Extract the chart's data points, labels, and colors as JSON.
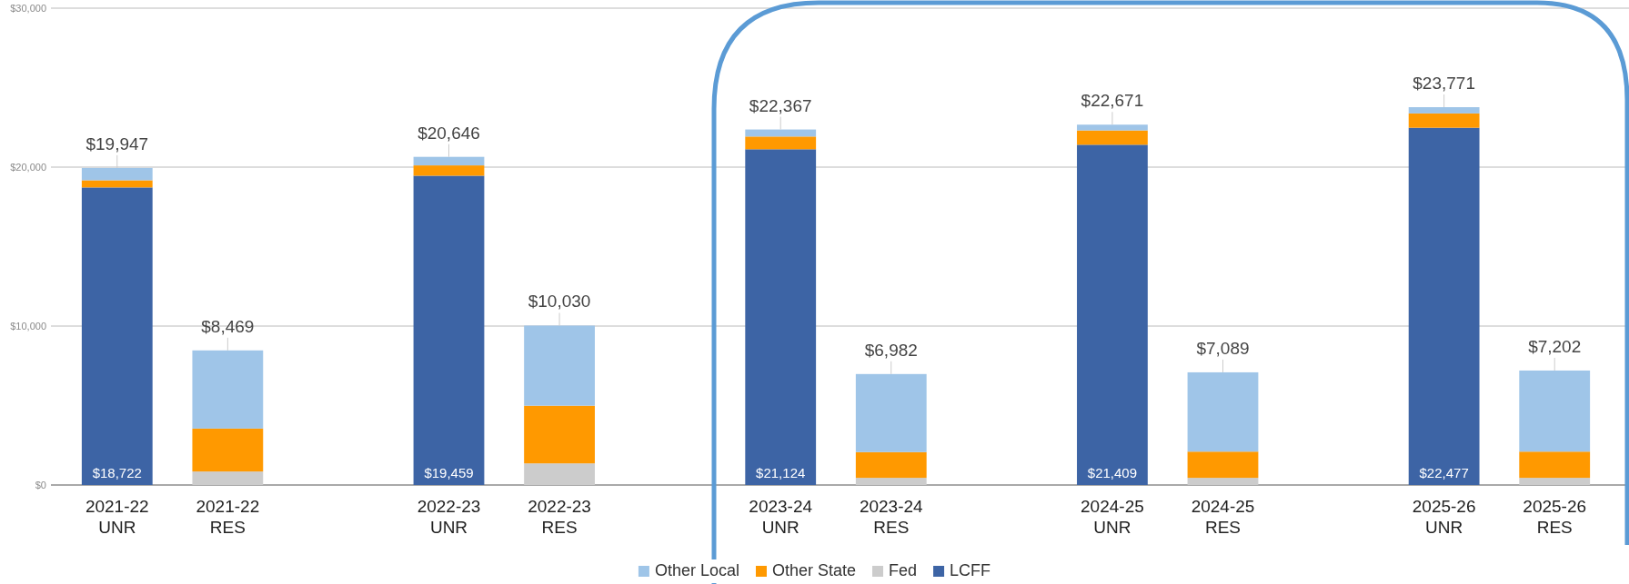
{
  "chart_data": {
    "type": "bar",
    "stacked": true,
    "categories": [
      "2021-22 UNR",
      "2021-22 RES",
      null,
      "2022-23 UNR",
      "2022-23 RES",
      null,
      "2023-24 UNR",
      "2023-24 RES",
      null,
      "2024-25 UNR",
      "2024-25 RES",
      null,
      "2025-26 UNR",
      "2025-26 RES"
    ],
    "series": [
      {
        "name": "LCFF",
        "color": "#3d64a5",
        "values": [
          18722,
          null,
          null,
          19459,
          null,
          null,
          21124,
          null,
          null,
          21409,
          null,
          null,
          22477,
          null
        ],
        "value_labels": [
          "$18,722",
          null,
          null,
          "$19,459",
          null,
          null,
          "$21,124",
          null,
          null,
          "$21,409",
          null,
          null,
          "$22,477",
          null
        ]
      },
      {
        "name": "Fed",
        "color": "#cccccc",
        "values": [
          null,
          850,
          null,
          null,
          1360,
          null,
          null,
          450,
          null,
          null,
          450,
          null,
          null,
          450
        ]
      },
      {
        "name": "Other State",
        "color": "#ff9900",
        "values": [
          450,
          2700,
          null,
          650,
          3630,
          null,
          800,
          1620,
          null,
          900,
          1650,
          null,
          900,
          1650
        ]
      },
      {
        "name": "Other Local",
        "color": "#9fc5e8",
        "values": [
          775,
          4919,
          null,
          537,
          5040,
          null,
          443,
          4912,
          null,
          362,
          4989,
          null,
          394,
          5102
        ]
      }
    ],
    "totals": [
      "$19,947",
      "$8,469",
      null,
      "$20,646",
      "$10,030",
      null,
      "$22,367",
      "$6,982",
      null,
      "$22,671",
      "$7,089",
      null,
      "$23,771",
      "$7,202"
    ],
    "ylim": [
      0,
      30000
    ],
    "yticks": [
      {
        "value": 0,
        "label": "$0"
      },
      {
        "value": 10000,
        "label": "$10,000"
      },
      {
        "value": 20000,
        "label": "$20,000"
      },
      {
        "value": 30000,
        "label": "$30,000"
      }
    ],
    "grid": "y",
    "legend": "bottom"
  }
}
